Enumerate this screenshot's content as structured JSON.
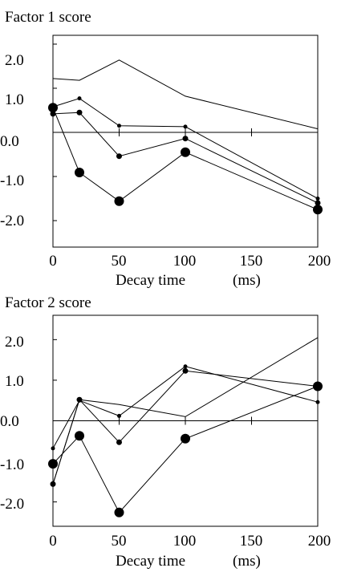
{
  "chart_data": [
    {
      "type": "line",
      "title": "Factor   1   score",
      "xlabel": "Decay time",
      "xunit": "(ms)",
      "x": [
        0,
        20,
        50,
        100,
        200
      ],
      "x_ticks": [
        "0",
        "50",
        "100",
        "150",
        "200"
      ],
      "y_ticks": [
        "2.0",
        "1.0",
        "0.0",
        "-1.0",
        "-2.0"
      ],
      "xlim": [
        0,
        200
      ],
      "ylim": [
        -2.6,
        2.2
      ],
      "grid": false,
      "series": [
        {
          "values": [
            1.22,
            1.18,
            1.64,
            0.82,
            0.08
          ],
          "marker": "none"
        },
        {
          "values": [
            0.58,
            0.77,
            0.15,
            0.13,
            -1.5
          ],
          "marker": "small"
        },
        {
          "values": [
            0.42,
            0.45,
            -0.54,
            -0.14,
            -1.6
          ],
          "marker": "medium"
        },
        {
          "values": [
            0.56,
            -0.91,
            -1.56,
            -0.45,
            -1.75
          ],
          "marker": "large"
        }
      ]
    },
    {
      "type": "line",
      "title": "Factor 2 score",
      "xlabel": "Decay time",
      "xunit": "(ms)",
      "x": [
        0,
        20,
        50,
        100,
        200
      ],
      "x_ticks": [
        "0",
        "50",
        "100",
        "150",
        "200"
      ],
      "y_ticks": [
        "2.0",
        "1.0",
        "0.0",
        "-1.0",
        "-2.0"
      ],
      "xlim": [
        0,
        200
      ],
      "ylim": [
        -2.6,
        2.6
      ],
      "grid": false,
      "series": [
        {
          "values": [
            -1.56,
            0.52,
            0.4,
            0.1,
            2.05
          ],
          "marker": "none"
        },
        {
          "values": [
            -0.68,
            0.5,
            0.12,
            1.34,
            0.46
          ],
          "marker": "small"
        },
        {
          "values": [
            -1.56,
            0.52,
            -0.53,
            1.23,
            0.85
          ],
          "marker": "medium"
        },
        {
          "values": [
            -1.06,
            -0.37,
            -2.26,
            -0.44,
            0.85
          ],
          "marker": "large"
        }
      ]
    }
  ]
}
